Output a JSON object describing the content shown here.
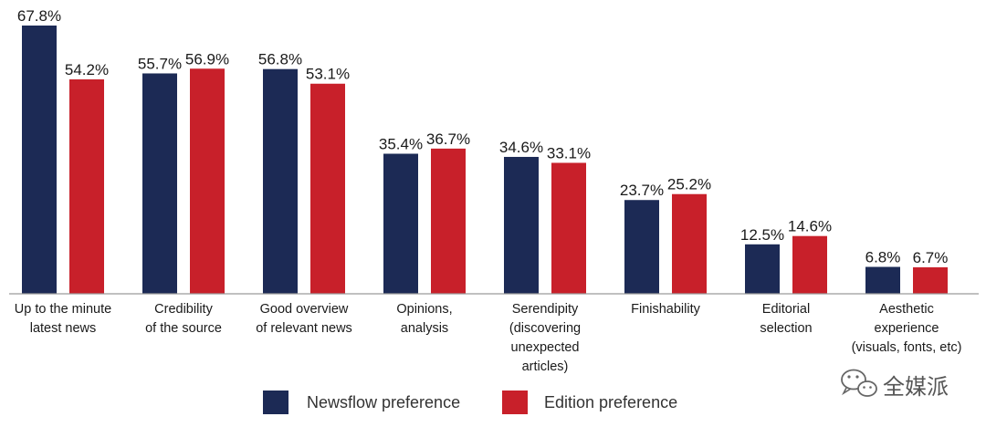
{
  "chart_data": {
    "type": "bar",
    "title": "",
    "xlabel": "",
    "ylabel": "",
    "ylim": [
      0,
      70
    ],
    "grid": false,
    "legend_position": "bottom-center",
    "value_suffix": "%",
    "categories": [
      [
        "Up to the minute",
        "latest news"
      ],
      [
        "Credibility",
        "of the source"
      ],
      [
        "Good overview",
        "of relevant news"
      ],
      [
        "Opinions,",
        "analysis"
      ],
      [
        "Serendipity",
        "(discovering",
        "unexpected",
        "articles)"
      ],
      [
        "Finishability"
      ],
      [
        "Editorial",
        "selection"
      ],
      [
        "Aesthetic",
        "experience",
        "(visuals, fonts, etc)"
      ]
    ],
    "series": [
      {
        "name": "Newsflow preference",
        "color": "#1c2a55",
        "values": [
          67.8,
          55.7,
          56.8,
          35.4,
          34.6,
          23.7,
          12.5,
          6.8
        ],
        "labels": [
          "67.8%",
          "55.7%",
          "56.8%",
          "35.4%",
          "34.6%",
          "23.7%",
          "12.5%",
          "6.8%"
        ]
      },
      {
        "name": "Edition preference",
        "color": "#c8202a",
        "values": [
          54.2,
          56.9,
          53.1,
          36.7,
          33.1,
          25.2,
          14.6,
          6.7
        ],
        "labels": [
          "54.2%",
          "56.9%",
          "53.1%",
          "36.7%",
          "33.1%",
          "25.2%",
          "14.6%",
          "6.7%"
        ]
      }
    ]
  },
  "watermark": {
    "text": "全媒派",
    "icon": "wechat-icon"
  },
  "colors": {
    "axis": "#9a9a9a",
    "text": "#1a1a1a"
  }
}
